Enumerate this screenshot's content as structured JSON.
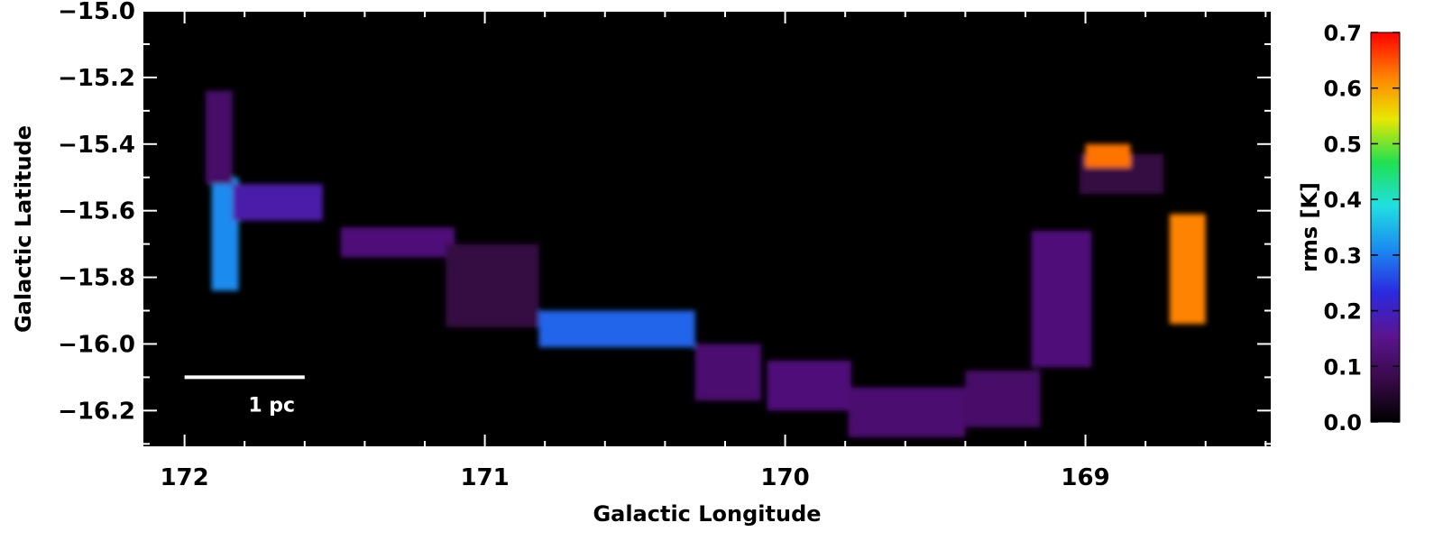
{
  "chart_data": {
    "type": "heatmap",
    "title": "",
    "xlabel": "Galactic Longitude",
    "ylabel": "Galactic Latitude",
    "xlim": [
      172.14,
      168.38
    ],
    "ylim": [
      -16.31,
      -15.0
    ],
    "x_ticks": [
      {
        "value": 172,
        "label": "172"
      },
      {
        "value": 171,
        "label": "171"
      },
      {
        "value": 170,
        "label": "170"
      },
      {
        "value": 169,
        "label": "169"
      }
    ],
    "y_ticks": [
      {
        "value": -15.0,
        "label": "−15.0"
      },
      {
        "value": -15.2,
        "label": "−15.2"
      },
      {
        "value": -15.4,
        "label": "−15.4"
      },
      {
        "value": -15.6,
        "label": "−15.6"
      },
      {
        "value": -15.8,
        "label": "−15.8"
      },
      {
        "value": -16.0,
        "label": "−16.0"
      },
      {
        "value": -16.2,
        "label": "−16.2"
      }
    ],
    "colorbar": {
      "label": "rms [K]",
      "range": [
        0.0,
        0.7
      ],
      "ticks": [
        {
          "value": 0.0,
          "label": "0.0"
        },
        {
          "value": 0.1,
          "label": "0.1"
        },
        {
          "value": 0.2,
          "label": "0.2"
        },
        {
          "value": 0.3,
          "label": "0.3"
        },
        {
          "value": 0.4,
          "label": "0.4"
        },
        {
          "value": 0.5,
          "label": "0.5"
        },
        {
          "value": 0.6,
          "label": "0.6"
        },
        {
          "value": 0.7,
          "label": "0.7"
        }
      ],
      "colors": [
        "#000000",
        "#3a0a4a",
        "#5a1590",
        "#2a2ae0",
        "#1a8cf0",
        "#20e0e0",
        "#20e050",
        "#e8e800",
        "#ff8000",
        "#ff0000"
      ]
    },
    "background_color": "#000000",
    "scale_bar": {
      "label": "1 pc",
      "x_start": 172.0,
      "x_end": 171.6,
      "y": -16.1
    },
    "regions": [
      {
        "l": [
          171.91,
          171.82
        ],
        "b": [
          -15.84,
          -15.5
        ],
        "rms": 0.31
      },
      {
        "l": [
          171.93,
          171.84
        ],
        "b": [
          -15.52,
          -15.24
        ],
        "rms": 0.11
      },
      {
        "l": [
          171.84,
          171.54
        ],
        "b": [
          -15.63,
          -15.52
        ],
        "rms": 0.18
      },
      {
        "l": [
          171.48,
          171.1
        ],
        "b": [
          -15.74,
          -15.65
        ],
        "rms": 0.13
      },
      {
        "l": [
          171.13,
          170.82
        ],
        "b": [
          -15.95,
          -15.7
        ],
        "rms": 0.07
      },
      {
        "l": [
          170.82,
          170.3
        ],
        "b": [
          -16.01,
          -15.9
        ],
        "rms": 0.28
      },
      {
        "l": [
          170.3,
          170.08
        ],
        "b": [
          -16.17,
          -16.0
        ],
        "rms": 0.12
      },
      {
        "l": [
          170.06,
          169.78
        ],
        "b": [
          -16.2,
          -16.05
        ],
        "rms": 0.13
      },
      {
        "l": [
          169.79,
          169.4
        ],
        "b": [
          -16.28,
          -16.13
        ],
        "rms": 0.12
      },
      {
        "l": [
          169.4,
          169.15
        ],
        "b": [
          -16.25,
          -16.08
        ],
        "rms": 0.11
      },
      {
        "l": [
          169.18,
          168.98
        ],
        "b": [
          -16.07,
          -15.66
        ],
        "rms": 0.13
      },
      {
        "l": [
          169.02,
          168.74
        ],
        "b": [
          -15.55,
          -15.43
        ],
        "rms": 0.07
      },
      {
        "l": [
          168.72,
          168.6
        ],
        "b": [
          -15.94,
          -15.61
        ],
        "rms": 0.62
      },
      {
        "l": [
          169.0,
          168.85
        ],
        "b": [
          -15.47,
          -15.4
        ],
        "rms": 0.63
      }
    ]
  }
}
